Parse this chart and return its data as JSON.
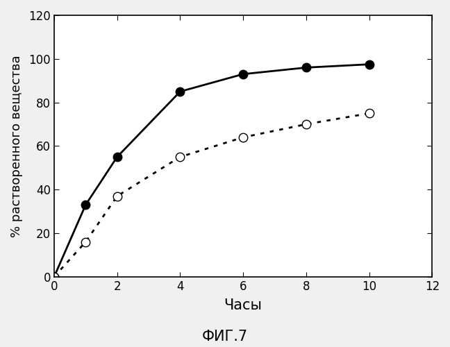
{
  "series1": {
    "x": [
      0,
      1,
      2,
      4,
      6,
      8,
      10
    ],
    "y": [
      0,
      33,
      55,
      85,
      93,
      96,
      97.5
    ],
    "linestyle": "solid",
    "marker": "o",
    "markerfacecolor": "black",
    "markeredgecolor": "black",
    "color": "black",
    "markersize": 9,
    "linewidth": 2.0
  },
  "series2": {
    "x": [
      0,
      1,
      2,
      4,
      6,
      8,
      10
    ],
    "y": [
      0,
      16,
      37,
      55,
      64,
      70,
      75
    ],
    "marker": "o",
    "markerfacecolor": "white",
    "markeredgecolor": "black",
    "color": "black",
    "markersize": 9,
    "linewidth": 2.0
  },
  "xlabel": "Часы",
  "ylabel": "% растворенного вещества",
  "title": "ФИГ.7",
  "xlim": [
    0,
    12
  ],
  "ylim": [
    0,
    120
  ],
  "xticks": [
    0,
    2,
    4,
    6,
    8,
    10,
    12
  ],
  "yticks": [
    0,
    20,
    40,
    60,
    80,
    100,
    120
  ],
  "background_color": "#f0f0f0",
  "plot_bg_color": "#ffffff",
  "xlabel_fontsize": 15,
  "ylabel_fontsize": 13,
  "title_fontsize": 15,
  "tick_fontsize": 12
}
